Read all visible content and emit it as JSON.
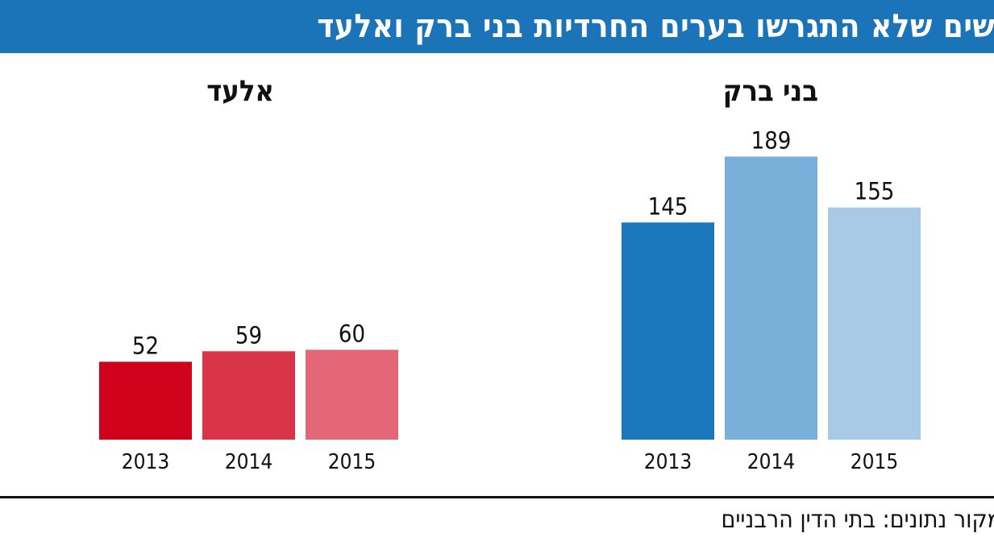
{
  "header": {
    "title": "נשים שלא התגרשו בערים החרדיות בני ברק ואלעד",
    "source": "מקור נתונים: בתי הדין הרבניים"
  },
  "chart_data": [
    {
      "type": "bar",
      "title": "בני ברק",
      "categories": [
        "2013",
        "2014",
        "2015"
      ],
      "values": [
        145,
        189,
        155
      ],
      "colors": [
        "#1b78bd",
        "#79b0d9",
        "#a8cae6"
      ],
      "ylim": [
        0,
        200
      ],
      "grid": false
    },
    {
      "type": "bar",
      "title": "אלעד",
      "categories": [
        "2013",
        "2014",
        "2015"
      ],
      "values": [
        52,
        59,
        60
      ],
      "colors": [
        "#d0021b",
        "#d93447",
        "#e36776"
      ],
      "ylim": [
        0,
        200
      ],
      "grid": false
    }
  ]
}
